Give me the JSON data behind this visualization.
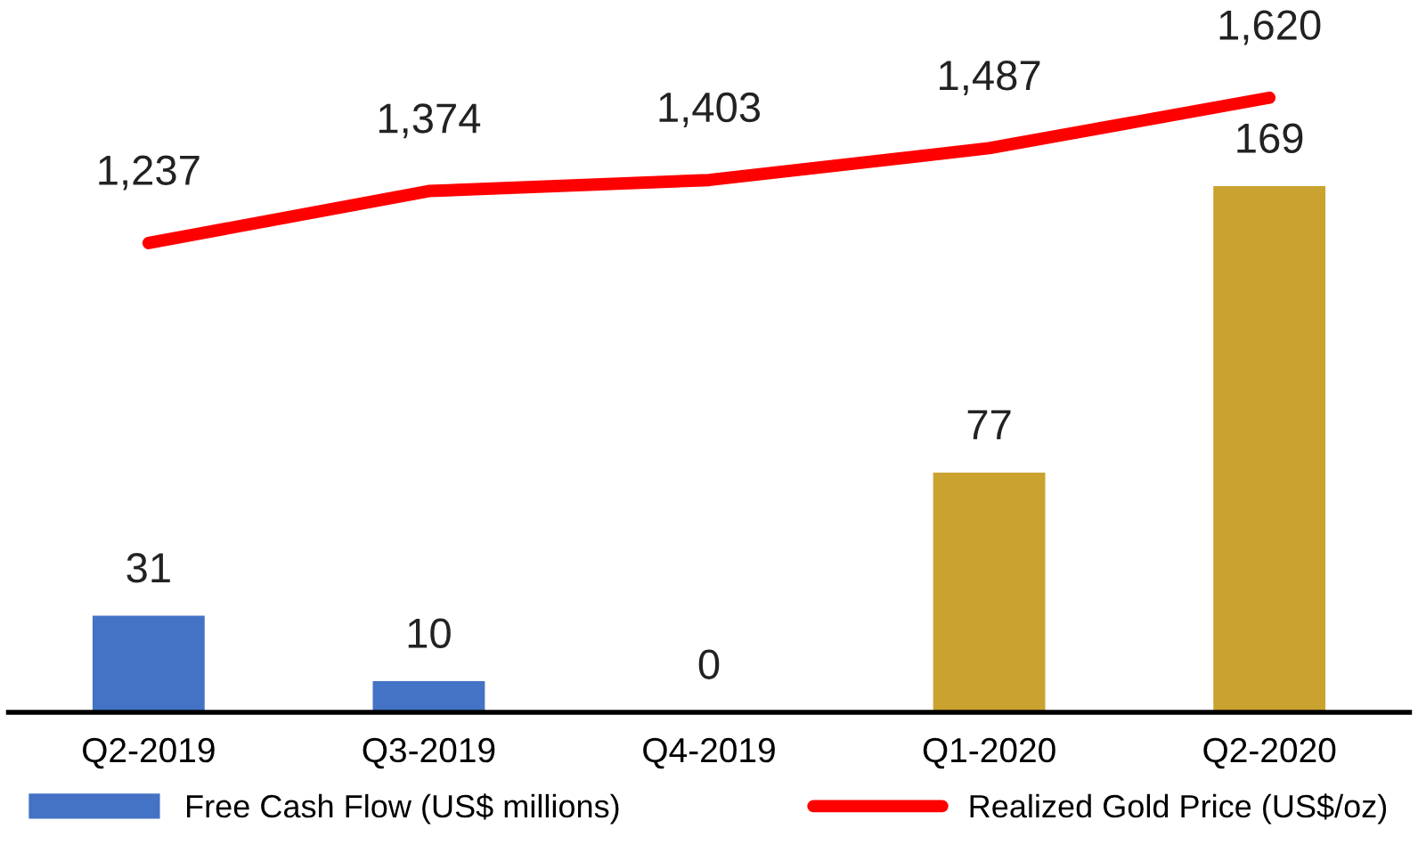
{
  "chart_data": {
    "type": "bar",
    "categories": [
      "Q2-2019",
      "Q3-2019",
      "Q4-2019",
      "Q1-2020",
      "Q2-2020"
    ],
    "series": [
      {
        "name": "Free Cash Flow (US$ millions)",
        "color": "#4472c4",
        "colors": [
          "#4472c4",
          "#4472c4",
          "#4472c4",
          "#c9a22f",
          "#c9a22f"
        ],
        "values": [
          31,
          10,
          0,
          77,
          169
        ],
        "value_labels": [
          "31",
          "10",
          "0",
          "77",
          "169"
        ]
      },
      {
        "name": "Realized Gold Price (US$/oz)",
        "type": "line",
        "axis": "y2",
        "color": "#ff0000",
        "values": [
          1237,
          1374,
          1403,
          1487,
          1620
        ],
        "value_labels": [
          "1,237",
          "1,374",
          "1,403",
          "1,487",
          "1,620"
        ]
      }
    ],
    "legend": "bottom",
    "marker": "none",
    "tick_labels": "x"
  }
}
